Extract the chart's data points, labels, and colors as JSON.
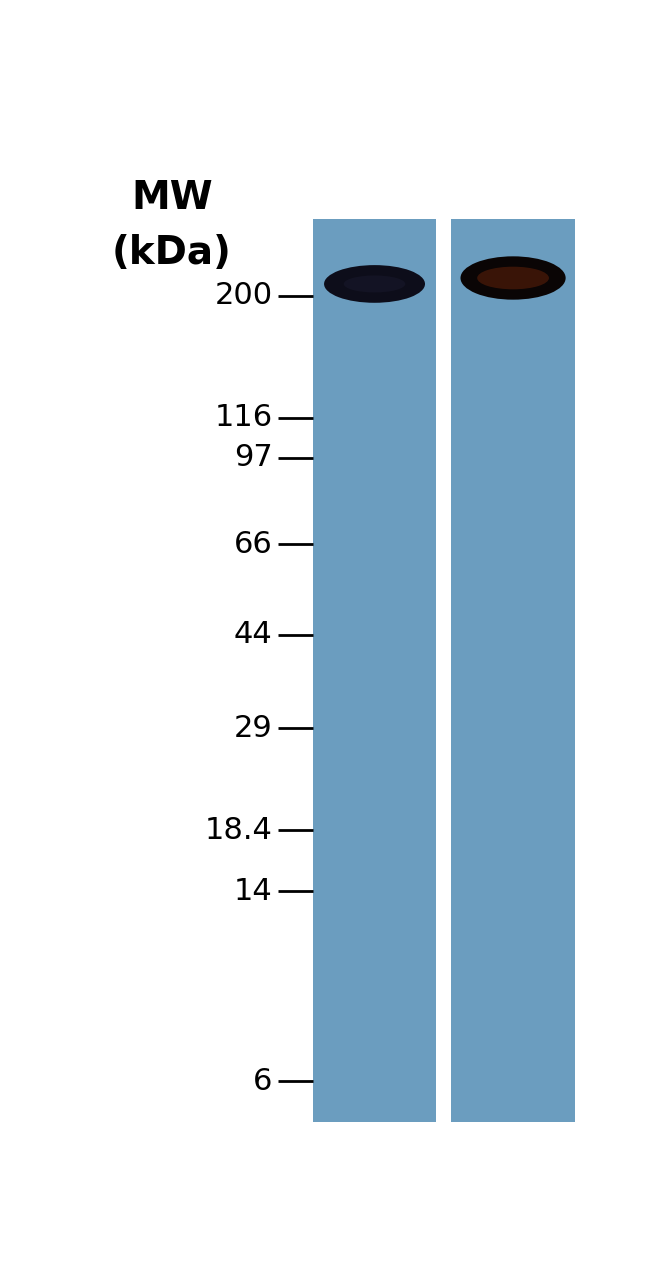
{
  "background_color": "#ffffff",
  "lane_color": "#6b9dbf",
  "mw_labels": [
    "200",
    "116",
    "97",
    "66",
    "44",
    "29",
    "18.4",
    "14",
    "6"
  ],
  "mw_values": [
    200,
    116,
    97,
    66,
    44,
    29,
    18.4,
    14,
    6
  ],
  "mw_header_line1": "MW",
  "mw_header_line2": "(kDa)",
  "fig_width": 6.5,
  "fig_height": 12.88,
  "log_max": 2.45,
  "log_min": 0.7
}
